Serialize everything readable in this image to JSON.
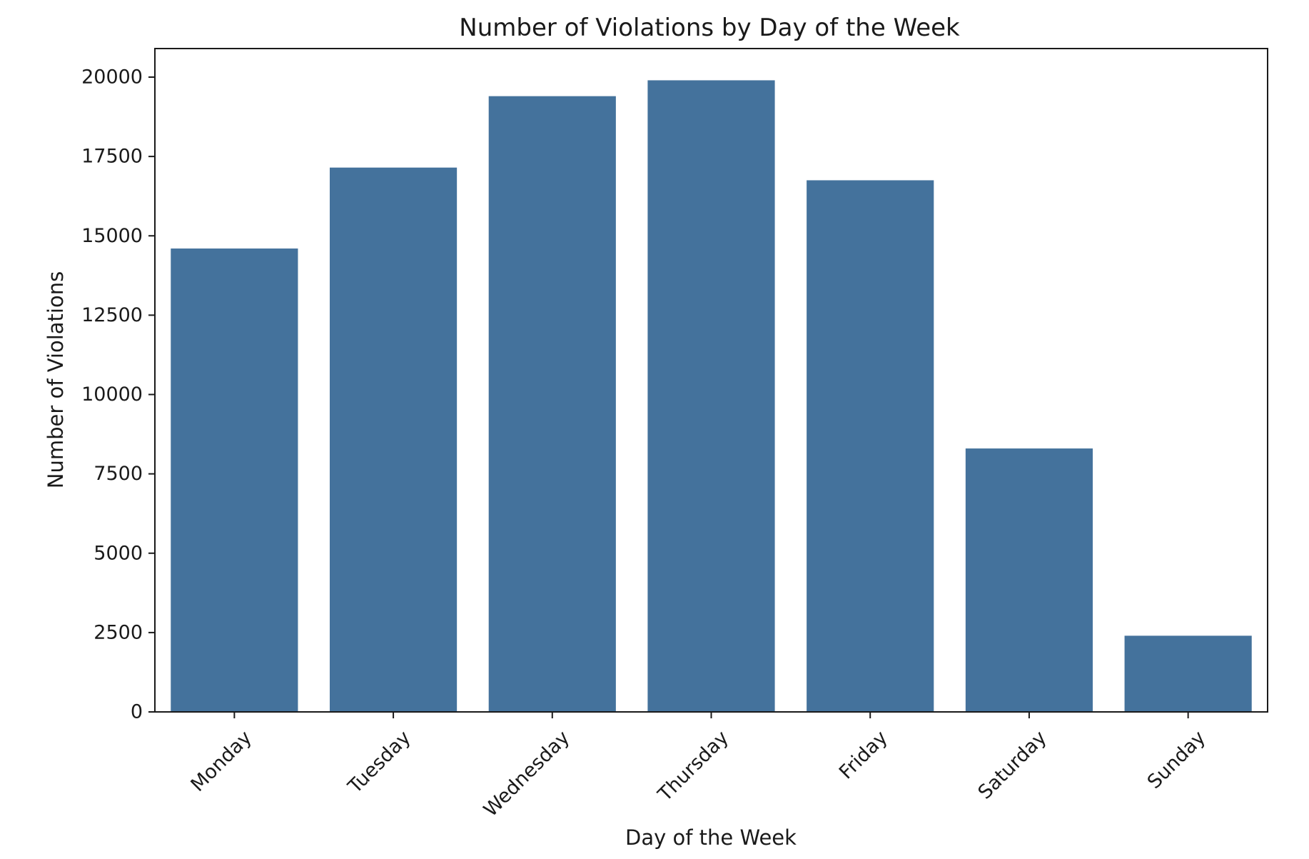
{
  "chart_data": {
    "type": "bar",
    "title": "Number of Violations by Day of the Week",
    "xlabel": "Day of the Week",
    "ylabel": "Number of Violations",
    "categories": [
      "Monday",
      "Tuesday",
      "Wednesday",
      "Thursday",
      "Friday",
      "Saturday",
      "Sunday"
    ],
    "values": [
      14600,
      17150,
      19400,
      19900,
      16750,
      8300,
      2400
    ],
    "ylim": [
      0,
      20900
    ],
    "yticks": [
      0,
      2500,
      5000,
      7500,
      10000,
      12500,
      15000,
      17500,
      20000
    ],
    "grid": false,
    "legend": "none",
    "bar_color": "#44729c"
  }
}
